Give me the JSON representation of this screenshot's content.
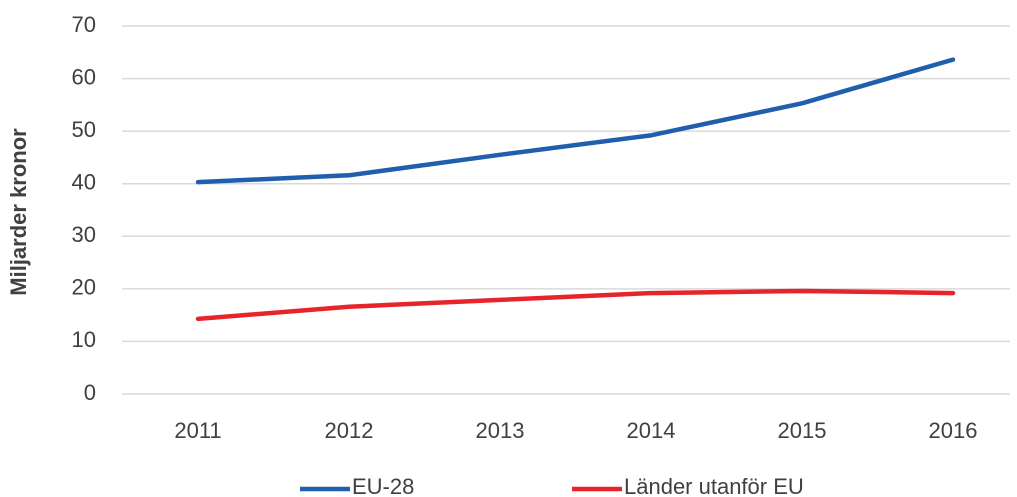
{
  "chart_data": {
    "type": "line",
    "ylabel": "Miljarder kronor",
    "categories": [
      "2011",
      "2012",
      "2013",
      "2014",
      "2015",
      "2016"
    ],
    "series": [
      {
        "name": "EU-28",
        "color": "#1f5fad",
        "values": [
          40.3,
          41.6,
          45.5,
          49.2,
          55.3,
          63.6
        ]
      },
      {
        "name": "Länder utanför EU",
        "color": "#e8242b",
        "values": [
          14.3,
          16.6,
          17.9,
          19.2,
          19.6,
          19.2
        ]
      }
    ],
    "ylim": [
      0,
      70
    ],
    "yticks": [
      0,
      10,
      20,
      30,
      40,
      50,
      60,
      70
    ],
    "grid": true,
    "legend": "bottom"
  }
}
